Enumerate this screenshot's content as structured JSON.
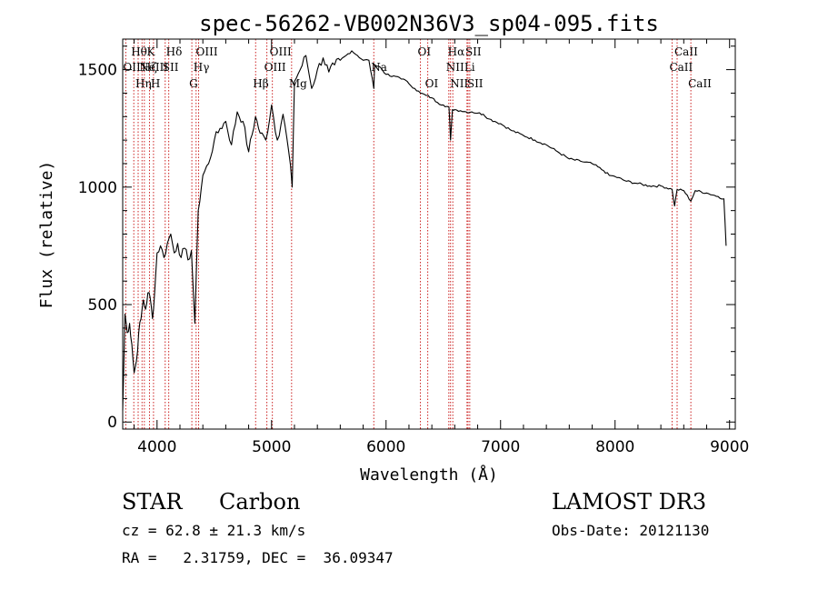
{
  "chart_data": {
    "type": "line",
    "title": "spec-56262-VB002N36V3_sp04-095.fits",
    "xlabel": "Wavelength (Å)",
    "ylabel": "Flux (relative)",
    "xlim": [
      3700,
      9050
    ],
    "ylim": [
      -30,
      1630
    ],
    "x_ticks": [
      4000,
      5000,
      6000,
      7000,
      8000,
      9000
    ],
    "y_ticks": [
      0,
      500,
      1000,
      1500
    ],
    "grid": false,
    "line_color": "#000000",
    "marker_color": "#cc2222",
    "series": [
      {
        "x": [
          3700,
          3720,
          3740,
          3760,
          3780,
          3800,
          3820,
          3840,
          3860,
          3880,
          3900,
          3920,
          3940,
          3960,
          3980,
          4000,
          4030,
          4060,
          4090,
          4120,
          4150,
          4180,
          4210,
          4240,
          4270,
          4300,
          4330,
          4360,
          4400,
          4450,
          4500,
          4550,
          4600,
          4650,
          4700,
          4750,
          4800,
          4860,
          4900,
          4950,
          5000,
          5050,
          5100,
          5150,
          5180,
          5200,
          5250,
          5300,
          5350,
          5400,
          5450,
          5500,
          5550,
          5600,
          5650,
          5700,
          5750,
          5800,
          5850,
          5893,
          5900,
          5950,
          6000,
          6050,
          6100,
          6150,
          6200,
          6250,
          6300,
          6350,
          6400,
          6450,
          6500,
          6550,
          6563,
          6580,
          6600,
          6650,
          6700,
          6750,
          6800,
          6850,
          6900,
          6950,
          7000,
          7100,
          7200,
          7300,
          7400,
          7500,
          7600,
          7700,
          7800,
          7900,
          7950,
          8000,
          8100,
          8200,
          8300,
          8400,
          8498,
          8520,
          8542,
          8600,
          8662,
          8700,
          8800,
          8900,
          8950,
          8970
        ],
        "y": [
          50,
          460,
          380,
          420,
          330,
          210,
          260,
          380,
          440,
          520,
          480,
          550,
          530,
          440,
          560,
          720,
          750,
          700,
          760,
          800,
          720,
          760,
          700,
          740,
          690,
          730,
          420,
          900,
          1050,
          1100,
          1200,
          1250,
          1280,
          1180,
          1320,
          1280,
          1150,
          1300,
          1230,
          1200,
          1350,
          1200,
          1310,
          1150,
          1000,
          1450,
          1500,
          1560,
          1420,
          1500,
          1550,
          1490,
          1520,
          1540,
          1560,
          1580,
          1560,
          1540,
          1540,
          1420,
          1520,
          1510,
          1480,
          1470,
          1470,
          1460,
          1440,
          1420,
          1400,
          1390,
          1380,
          1360,
          1350,
          1340,
          1200,
          1330,
          1330,
          1325,
          1320,
          1320,
          1315,
          1310,
          1290,
          1280,
          1270,
          1240,
          1220,
          1200,
          1180,
          1150,
          1120,
          1110,
          1100,
          1070,
          1050,
          1045,
          1025,
          1015,
          1005,
          1005,
          990,
          920,
          990,
          985,
          940,
          985,
          975,
          960,
          950,
          750
        ]
      }
    ],
    "lines": [
      {
        "x": 3727,
        "label": "OII",
        "row": 2
      },
      {
        "x": 3797,
        "label": "Hθ",
        "row": 1
      },
      {
        "x": 3835,
        "label": "Hη",
        "row": 3
      },
      {
        "x": 3869,
        "label": "NeIII",
        "row": 2
      },
      {
        "x": 3889,
        "label": "Hζ",
        "row": 2
      },
      {
        "x": 3934,
        "label": "K",
        "row": 1
      },
      {
        "x": 3969,
        "label": "H",
        "row": 3
      },
      {
        "x": 4071,
        "label": "SII",
        "row": 2
      },
      {
        "x": 4102,
        "label": "Hδ",
        "row": 1
      },
      {
        "x": 4304,
        "label": "G",
        "row": 3
      },
      {
        "x": 4341,
        "label": "Hγ",
        "row": 2
      },
      {
        "x": 4363,
        "label": "OIII",
        "row": 1
      },
      {
        "x": 4861,
        "label": "Hβ",
        "row": 3
      },
      {
        "x": 4959,
        "label": "OIII",
        "row": 2
      },
      {
        "x": 5007,
        "label": "OIII",
        "row": 1
      },
      {
        "x": 5175,
        "label": "Mg",
        "row": 3
      },
      {
        "x": 5893,
        "label": "Na",
        "row": 2
      },
      {
        "x": 6300,
        "label": "OI",
        "row": 1
      },
      {
        "x": 6364,
        "label": "OI",
        "row": 3
      },
      {
        "x": 6548,
        "label": "NII",
        "row": 2
      },
      {
        "x": 6563,
        "label": "Hα",
        "row": 1
      },
      {
        "x": 6583,
        "label": "NII",
        "row": 3
      },
      {
        "x": 6707,
        "label": "Li",
        "row": 2
      },
      {
        "x": 6716,
        "label": "SII",
        "row": 1
      },
      {
        "x": 6731,
        "label": "SII",
        "row": 3
      },
      {
        "x": 8498,
        "label": "CaII",
        "row": 2
      },
      {
        "x": 8542,
        "label": "CaII",
        "row": 1
      },
      {
        "x": 8662,
        "label": "CaII",
        "row": 3
      }
    ]
  },
  "info": {
    "object_class": "STAR",
    "subclass": "Carbon",
    "survey": "LAMOST DR3",
    "redshift": "cz = 62.8 ± 21.3 km/s",
    "obs_date": "Obs-Date: 20121130",
    "coords": "RA =   2.31759, DEC =  36.09347"
  }
}
